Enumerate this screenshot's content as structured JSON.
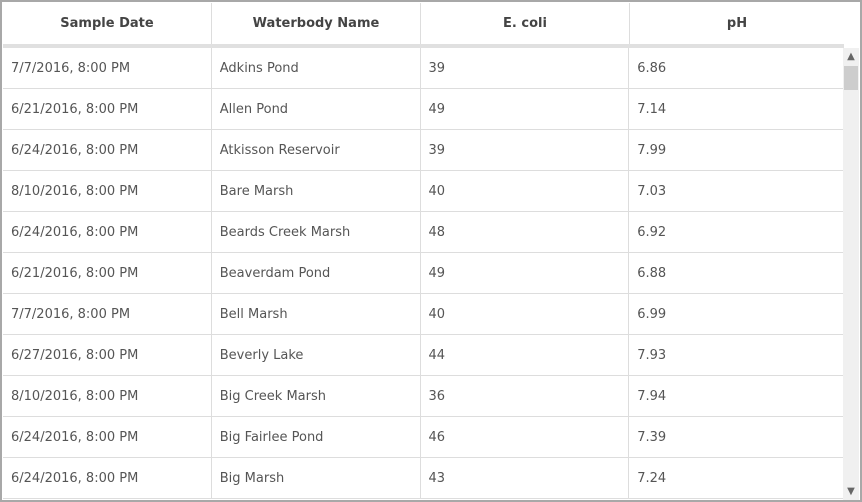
{
  "columns": [
    "Sample Date",
    "Waterbody Name",
    "E. coli",
    "pH"
  ],
  "rows": [
    [
      "7/7/2016, 8:00 PM",
      "Adkins Pond",
      "39",
      "6.86"
    ],
    [
      "6/21/2016, 8:00 PM",
      "Allen Pond",
      "49",
      "7.14"
    ],
    [
      "6/24/2016, 8:00 PM",
      "Atkisson Reservoir",
      "39",
      "7.99"
    ],
    [
      "8/10/2016, 8:00 PM",
      "Bare Marsh",
      "40",
      "7.03"
    ],
    [
      "6/24/2016, 8:00 PM",
      "Beards Creek Marsh",
      "48",
      "6.92"
    ],
    [
      "6/21/2016, 8:00 PM",
      "Beaverdam Pond",
      "49",
      "6.88"
    ],
    [
      "7/7/2016, 8:00 PM",
      "Bell Marsh",
      "40",
      "6.99"
    ],
    [
      "6/27/2016, 8:00 PM",
      "Beverly Lake",
      "44",
      "7.93"
    ],
    [
      "8/10/2016, 8:00 PM",
      "Big Creek Marsh",
      "36",
      "7.94"
    ],
    [
      "6/24/2016, 8:00 PM",
      "Big Fairlee Pond",
      "46",
      "7.39"
    ],
    [
      "6/24/2016, 8:00 PM",
      "Big Marsh",
      "43",
      "7.24"
    ]
  ],
  "scrollbar": {
    "up_icon": "chevron-up-icon",
    "down_icon": "chevron-down-icon"
  }
}
